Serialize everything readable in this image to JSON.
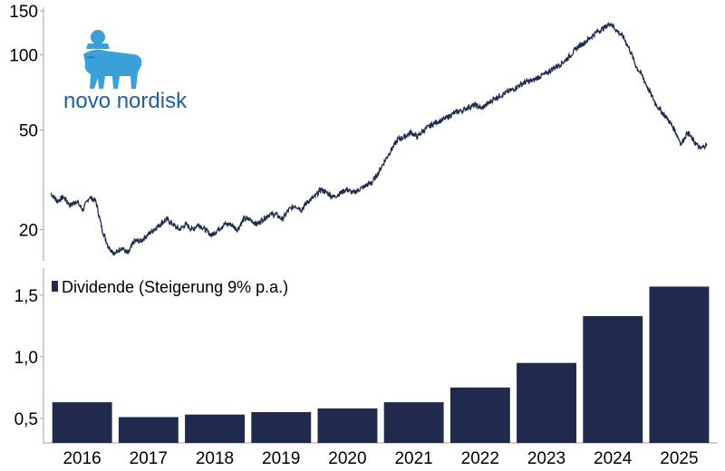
{
  "logo": {
    "text": "novo nordisk",
    "color": "#1e5fa8",
    "accent": "#3aa0d8"
  },
  "colors": {
    "line": "#1f2a4d",
    "bar": "#1f2a4d",
    "axis": "#a0a0a0"
  },
  "chart_data": [
    {
      "type": "line",
      "scale": "log",
      "ylim": [
        15,
        155
      ],
      "yticks": [
        {
          "v": 20,
          "label": "20"
        },
        {
          "v": 50,
          "label": "50"
        },
        {
          "v": 100,
          "label": "100"
        },
        {
          "v": 150,
          "label": "150"
        }
      ],
      "x": [
        2015.5,
        2015.6,
        2015.7,
        2015.8,
        2015.9,
        2016.0,
        2016.1,
        2016.2,
        2016.3,
        2016.4,
        2016.5,
        2016.6,
        2016.7,
        2016.8,
        2016.9,
        2017.0,
        2017.1,
        2017.2,
        2017.3,
        2017.4,
        2017.5,
        2017.6,
        2017.7,
        2017.8,
        2017.9,
        2018.0,
        2018.1,
        2018.2,
        2018.3,
        2018.4,
        2018.5,
        2018.6,
        2018.7,
        2018.8,
        2018.9,
        2019.0,
        2019.1,
        2019.2,
        2019.3,
        2019.4,
        2019.5,
        2019.6,
        2019.7,
        2019.8,
        2019.9,
        2020.0,
        2020.1,
        2020.2,
        2020.3,
        2020.4,
        2020.5,
        2020.6,
        2020.7,
        2020.8,
        2020.9,
        2021.0,
        2021.1,
        2021.2,
        2021.3,
        2021.4,
        2021.5,
        2021.6,
        2021.7,
        2021.8,
        2021.9,
        2022.0,
        2022.1,
        2022.2,
        2022.3,
        2022.4,
        2022.5,
        2022.6,
        2022.7,
        2022.8,
        2022.9,
        2023.0,
        2023.1,
        2023.2,
        2023.3,
        2023.4,
        2023.5,
        2023.6,
        2023.7,
        2023.8,
        2023.9,
        2024.0,
        2024.1,
        2024.2,
        2024.3,
        2024.4,
        2024.5,
        2024.6,
        2024.7,
        2024.8,
        2024.9,
        2025.0,
        2025.1,
        2025.2,
        2025.3,
        2025.4,
        2025.5,
        2025.6,
        2025.7
      ],
      "values": [
        28,
        26,
        27,
        25,
        26,
        24,
        27,
        26,
        20,
        17,
        16,
        17,
        16,
        18,
        18,
        19,
        20,
        21,
        22,
        21,
        20,
        21,
        20,
        21,
        20,
        19,
        20,
        21,
        21,
        20,
        22,
        22,
        21,
        22,
        23,
        23,
        22,
        24,
        25,
        24,
        26,
        27,
        29,
        28,
        27,
        28,
        29,
        28,
        29,
        30,
        31,
        34,
        38,
        42,
        46,
        47,
        49,
        47,
        50,
        52,
        54,
        55,
        57,
        59,
        60,
        62,
        63,
        61,
        64,
        67,
        69,
        71,
        73,
        76,
        78,
        79,
        82,
        84,
        88,
        91,
        95,
        101,
        108,
        112,
        118,
        124,
        128,
        134,
        125,
        118,
        105,
        90,
        82,
        72,
        64,
        59,
        55,
        50,
        44,
        49,
        45,
        42,
        44
      ]
    },
    {
      "type": "bar",
      "categories": [
        "2016",
        "2017",
        "2018",
        "2019",
        "2020",
        "2021",
        "2022",
        "2023",
        "2024",
        "2025"
      ],
      "values": [
        0.63,
        0.51,
        0.53,
        0.55,
        0.58,
        0.63,
        0.75,
        0.95,
        1.33,
        1.57
      ],
      "ylim": [
        0.3,
        1.72
      ],
      "yticks": [
        {
          "v": 0.5,
          "label": "0,5"
        },
        {
          "v": 1.0,
          "label": "1,0"
        },
        {
          "v": 1.5,
          "label": "1,5"
        }
      ],
      "legend": "Dividende (Steigerung 9% p.a.)"
    }
  ]
}
